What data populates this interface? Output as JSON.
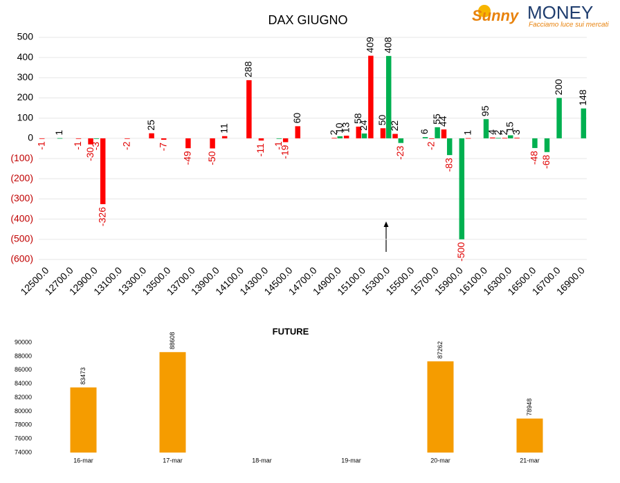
{
  "logo": {
    "name": "Sunny",
    "brand": "MONEY",
    "tagline": "Facciamo luce sui mercati"
  },
  "chart_data": [
    {
      "type": "bar",
      "title": "DAX GIUGNO",
      "categories": [
        "12500.0",
        null,
        "12700.0",
        null,
        "12900.0",
        null,
        "13100.0",
        null,
        "13300.0",
        null,
        "13500.0",
        null,
        "13700.0",
        null,
        "13900.0",
        null,
        "14100.0",
        null,
        "14300.0",
        null,
        "14500.0",
        null,
        "14700.0",
        null,
        "14900.0",
        null,
        "15100.0",
        null,
        "15300.0",
        null,
        "15500.0",
        null,
        "15700.0",
        null,
        "15900.0",
        null,
        "16100.0",
        null,
        "16300.0",
        null,
        "16500.0",
        null,
        "16700.0",
        null,
        "16900.0"
      ],
      "series": [
        {
          "color": "#ff0000",
          "values": [
            -1,
            null,
            null,
            -1,
            -30,
            -326,
            null,
            -2,
            null,
            25,
            -7,
            null,
            -49,
            null,
            -50,
            11,
            null,
            288,
            -11,
            null,
            -19,
            60,
            null,
            null,
            2,
            13,
            58,
            409,
            50,
            22,
            null,
            null,
            -2,
            44,
            null,
            1,
            null,
            4,
            2,
            3,
            null,
            null,
            null,
            null,
            null
          ]
        },
        {
          "color": "#00b050",
          "values": [
            null,
            1,
            null,
            null,
            -3,
            null,
            null,
            null,
            null,
            null,
            null,
            null,
            null,
            null,
            null,
            null,
            null,
            null,
            null,
            -1,
            null,
            null,
            null,
            null,
            10,
            null,
            24,
            null,
            408,
            -23,
            null,
            6,
            55,
            -83,
            -500,
            null,
            95,
            2,
            15,
            null,
            -48,
            -68,
            200,
            null,
            148
          ]
        }
      ],
      "ylim": [
        -600,
        500
      ],
      "yticks": [
        {
          "value": -600,
          "label": "(600)"
        },
        {
          "value": -500,
          "label": "(500)"
        },
        {
          "value": -400,
          "label": "(400)"
        },
        {
          "value": -300,
          "label": "(300)"
        },
        {
          "value": -200,
          "label": "(200)"
        },
        {
          "value": -100,
          "label": "(100)"
        },
        0,
        100,
        200,
        300,
        400,
        500
      ],
      "grid": true
    },
    {
      "type": "bar",
      "title": "FUTURE",
      "categories": [
        "16-mar",
        "17-mar",
        "18-mar",
        "19-mar",
        "20-mar",
        "21-mar"
      ],
      "values": [
        83473,
        88608,
        null,
        null,
        87262,
        78948
      ],
      "color": "#f59c00",
      "ylim": [
        74000,
        90000
      ],
      "yticks": [
        74000,
        76000,
        78000,
        80000,
        82000,
        84000,
        86000,
        88000,
        90000
      ],
      "grid": false
    }
  ]
}
